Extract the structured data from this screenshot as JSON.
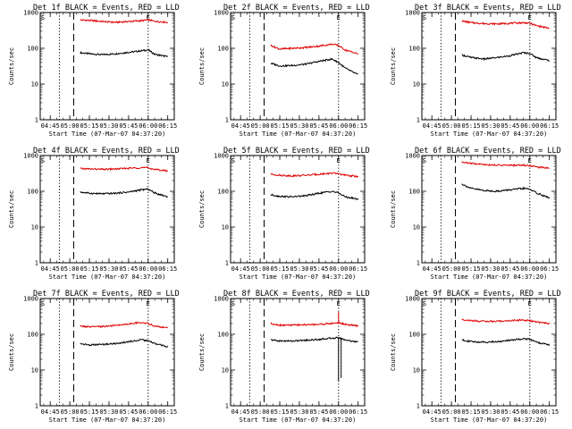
{
  "chart_data": {
    "type": "line",
    "y_scale": "log",
    "ylim": [
      1,
      1000
    ],
    "y_ticks": [
      1,
      10,
      100,
      1000
    ],
    "y_tick_labels": [
      "1",
      "10",
      "100",
      "1000"
    ],
    "x_tick_labels": [
      "04:45",
      "05:00",
      "05:15",
      "05:30",
      "05:45",
      "06:00",
      "06:15"
    ],
    "xlabel": "Start Time (07-Mar-07 04:37:20)",
    "ylabel": "Counts/sec",
    "colors": {
      "events": "#000000",
      "lld": "#e00000"
    },
    "panels": [
      {
        "title": "Det 1f BLACK = Events, RED = LLD",
        "markers": [
          {
            "label": "S",
            "x": "04:37:20"
          },
          {
            "label": "E",
            "x": "06:00"
          }
        ],
        "vlines": [
          {
            "style": "dotted",
            "x": "04:37:20"
          },
          {
            "style": "dotted",
            "x": "04:52"
          },
          {
            "style": "dashed",
            "x": "05:03"
          },
          {
            "style": "dotted",
            "x": "06:00"
          }
        ],
        "series": [
          {
            "key": "events",
            "x": [
              "05:08",
              "05:15",
              "05:25",
              "05:35",
              "05:45",
              "05:55",
              "06:00",
              "06:05",
              "06:15"
            ],
            "y": [
              75,
              70,
              66,
              70,
              77,
              85,
              90,
              68,
              58
            ]
          },
          {
            "key": "lld",
            "x": [
              "05:08",
              "05:15",
              "05:25",
              "05:35",
              "05:45",
              "05:55",
              "06:00",
              "06:05",
              "06:15"
            ],
            "y": [
              620,
              600,
              560,
              530,
              560,
              590,
              620,
              570,
              530
            ]
          }
        ]
      },
      {
        "title": "Det 2f BLACK = Events, RED = LLD",
        "markers": [
          {
            "label": "S",
            "x": "04:37:20"
          },
          {
            "label": "E",
            "x": "06:00"
          }
        ],
        "vlines": [
          {
            "style": "dotted",
            "x": "04:37:20"
          },
          {
            "style": "dotted",
            "x": "04:52"
          },
          {
            "style": "dashed",
            "x": "05:03"
          },
          {
            "style": "dotted",
            "x": "06:00"
          }
        ],
        "series": [
          {
            "key": "events",
            "x": [
              "05:08",
              "05:15",
              "05:25",
              "05:35",
              "05:45",
              "05:55",
              "06:00",
              "06:05",
              "06:15"
            ],
            "y": [
              38,
              32,
              33,
              36,
              43,
              50,
              40,
              28,
              18
            ]
          },
          {
            "key": "lld",
            "x": [
              "05:08",
              "05:15",
              "05:25",
              "05:35",
              "05:45",
              "05:55",
              "06:00",
              "06:05",
              "06:15"
            ],
            "y": [
              120,
              95,
              100,
              105,
              115,
              130,
              120,
              90,
              70
            ]
          }
        ]
      },
      {
        "title": "Det 3f BLACK = Events, RED = LLD",
        "markers": [
          {
            "label": "S",
            "x": "04:37:20"
          },
          {
            "label": "E",
            "x": "06:00"
          }
        ],
        "vlines": [
          {
            "style": "dotted",
            "x": "04:37:20"
          },
          {
            "style": "dotted",
            "x": "04:52"
          },
          {
            "style": "dashed",
            "x": "05:03"
          },
          {
            "style": "dotted",
            "x": "06:00"
          }
        ],
        "series": [
          {
            "key": "events",
            "x": [
              "05:08",
              "05:15",
              "05:25",
              "05:35",
              "05:45",
              "05:55",
              "06:00",
              "06:05",
              "06:15"
            ],
            "y": [
              65,
              55,
              50,
              55,
              62,
              75,
              72,
              55,
              45
            ]
          },
          {
            "key": "lld",
            "x": [
              "05:08",
              "05:15",
              "05:25",
              "05:35",
              "05:45",
              "05:55",
              "06:00",
              "06:05",
              "06:15"
            ],
            "y": [
              580,
              520,
              490,
              480,
              500,
              520,
              500,
              430,
              360
            ]
          }
        ]
      },
      {
        "title": "Det 4f BLACK = Events, RED = LLD",
        "markers": [
          {
            "label": "S",
            "x": "04:37:20"
          },
          {
            "label": "E",
            "x": "06:00"
          }
        ],
        "vlines": [
          {
            "style": "dotted",
            "x": "04:37:20"
          },
          {
            "style": "dotted",
            "x": "04:52"
          },
          {
            "style": "dashed",
            "x": "05:03"
          },
          {
            "style": "dotted",
            "x": "06:00"
          }
        ],
        "series": [
          {
            "key": "events",
            "x": [
              "05:08",
              "05:15",
              "05:25",
              "05:35",
              "05:45",
              "05:55",
              "06:00",
              "06:05",
              "06:15"
            ],
            "y": [
              95,
              88,
              85,
              88,
              95,
              110,
              115,
              90,
              70
            ]
          },
          {
            "key": "lld",
            "x": [
              "05:08",
              "05:15",
              "05:25",
              "05:35",
              "05:45",
              "05:55",
              "06:00",
              "06:05",
              "06:15"
            ],
            "y": [
              430,
              420,
              410,
              420,
              440,
              460,
              450,
              410,
              370
            ]
          }
        ]
      },
      {
        "title": "Det 5f BLACK = Events, RED = LLD",
        "markers": [
          {
            "label": "S",
            "x": "04:37:20"
          },
          {
            "label": "E",
            "x": "06:00"
          }
        ],
        "vlines": [
          {
            "style": "dotted",
            "x": "04:37:20"
          },
          {
            "style": "dotted",
            "x": "04:52"
          },
          {
            "style": "dashed",
            "x": "05:03"
          },
          {
            "style": "dotted",
            "x": "06:00"
          }
        ],
        "series": [
          {
            "key": "events",
            "x": [
              "05:08",
              "05:15",
              "05:25",
              "05:35",
              "05:45",
              "05:55",
              "06:00",
              "06:05",
              "06:15"
            ],
            "y": [
              80,
              72,
              70,
              75,
              88,
              100,
              90,
              70,
              60
            ]
          },
          {
            "key": "lld",
            "x": [
              "05:08",
              "05:15",
              "05:25",
              "05:35",
              "05:45",
              "05:55",
              "06:00",
              "06:05",
              "06:15"
            ],
            "y": [
              300,
              280,
              270,
              280,
              300,
              320,
              310,
              280,
              260
            ]
          }
        ]
      },
      {
        "title": "Det 6f BLACK = Events, RED = LLD",
        "markers": [
          {
            "label": "S",
            "x": "04:37:20"
          },
          {
            "label": "E",
            "x": "06:00"
          }
        ],
        "vlines": [
          {
            "style": "dotted",
            "x": "04:37:20"
          },
          {
            "style": "dotted",
            "x": "04:52"
          },
          {
            "style": "dashed",
            "x": "05:03"
          },
          {
            "style": "dotted",
            "x": "06:00"
          }
        ],
        "series": [
          {
            "key": "events",
            "x": [
              "05:08",
              "05:15",
              "05:25",
              "05:35",
              "05:45",
              "05:55",
              "06:00",
              "06:05",
              "06:15"
            ],
            "y": [
              160,
              120,
              105,
              100,
              110,
              120,
              115,
              90,
              65
            ]
          },
          {
            "key": "lld",
            "x": [
              "05:08",
              "05:15",
              "05:25",
              "05:35",
              "05:45",
              "05:55",
              "06:00",
              "06:05",
              "06:15"
            ],
            "y": [
              650,
              600,
              560,
              540,
              530,
              540,
              520,
              480,
              450
            ]
          }
        ]
      },
      {
        "title": "Det 7f BLACK = Events, RED = LLD",
        "markers": [
          {
            "label": "S",
            "x": "04:37:20"
          },
          {
            "label": "E",
            "x": "06:00"
          }
        ],
        "vlines": [
          {
            "style": "dotted",
            "x": "04:37:20"
          },
          {
            "style": "dotted",
            "x": "04:52"
          },
          {
            "style": "dashed",
            "x": "05:03"
          },
          {
            "style": "dotted",
            "x": "06:00"
          }
        ],
        "series": [
          {
            "key": "events",
            "x": [
              "05:08",
              "05:15",
              "05:25",
              "05:35",
              "05:45",
              "05:55",
              "06:00",
              "06:05",
              "06:15"
            ],
            "y": [
              55,
              50,
              52,
              55,
              62,
              70,
              65,
              55,
              45
            ]
          },
          {
            "key": "lld",
            "x": [
              "05:08",
              "05:15",
              "05:25",
              "05:35",
              "05:45",
              "05:55",
              "06:00",
              "06:05",
              "06:15"
            ],
            "y": [
              170,
              160,
              165,
              175,
              195,
              215,
              200,
              170,
              150
            ]
          }
        ]
      },
      {
        "title": "Det 8f BLACK = Events, RED = LLD",
        "markers": [
          {
            "label": "S",
            "x": "04:37:20"
          },
          {
            "label": "E",
            "x": "06:00"
          }
        ],
        "vlines": [
          {
            "style": "dotted",
            "x": "04:37:20"
          },
          {
            "style": "dotted",
            "x": "04:52"
          },
          {
            "style": "dashed",
            "x": "05:03"
          },
          {
            "style": "dotted",
            "x": "06:00"
          }
        ],
        "series": [
          {
            "key": "events",
            "x": [
              "05:08",
              "05:15",
              "05:25",
              "05:35",
              "05:45",
              "05:55",
              "06:00",
              "06:05",
              "06:15"
            ],
            "y": [
              70,
              65,
              65,
              68,
              72,
              78,
              80,
              70,
              60
            ]
          },
          {
            "key": "lld",
            "x": [
              "05:08",
              "05:15",
              "05:25",
              "05:35",
              "05:45",
              "05:55",
              "06:00",
              "06:05",
              "06:15"
            ],
            "y": [
              200,
              180,
              180,
              185,
              190,
              200,
              210,
              190,
              170
            ]
          }
        ],
        "spikes": [
          {
            "key": "lld",
            "x": "06:00",
            "y_from": 200,
            "y_to": 420
          },
          {
            "key": "events",
            "x": "06:00",
            "y_from": 80,
            "y_to": 5
          },
          {
            "key": "events",
            "x": "06:02",
            "y_from": 75,
            "y_to": 6
          }
        ]
      },
      {
        "title": "Det 9f BLACK = Events, RED = LLD",
        "markers": [
          {
            "label": "S",
            "x": "04:37:20"
          },
          {
            "label": "E",
            "x": "06:00"
          }
        ],
        "vlines": [
          {
            "style": "dotted",
            "x": "04:37:20"
          },
          {
            "style": "dotted",
            "x": "04:52"
          },
          {
            "style": "dashed",
            "x": "05:03"
          },
          {
            "style": "dotted",
            "x": "06:00"
          }
        ],
        "series": [
          {
            "key": "events",
            "x": [
              "05:08",
              "05:15",
              "05:25",
              "05:35",
              "05:45",
              "05:55",
              "06:00",
              "06:05",
              "06:15"
            ],
            "y": [
              70,
              62,
              60,
              62,
              68,
              75,
              72,
              60,
              50
            ]
          },
          {
            "key": "lld",
            "x": [
              "05:08",
              "05:15",
              "05:25",
              "05:35",
              "05:45",
              "05:55",
              "06:00",
              "06:05",
              "06:15"
            ],
            "y": [
              260,
              240,
              230,
              230,
              240,
              250,
              240,
              220,
              200
            ]
          }
        ]
      }
    ]
  }
}
